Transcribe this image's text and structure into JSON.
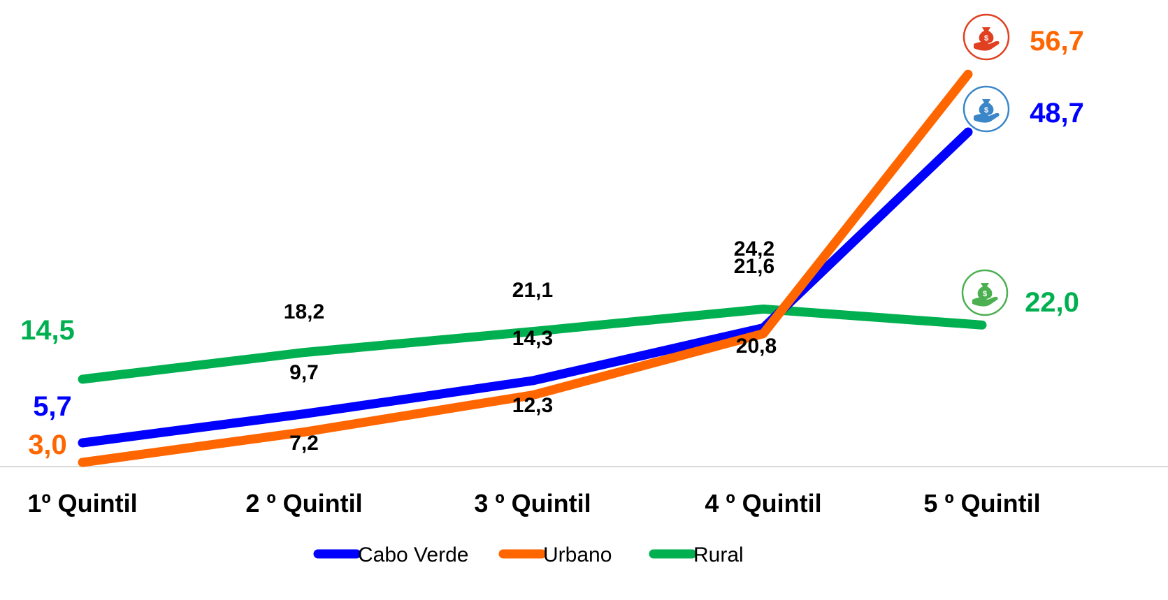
{
  "chart_data": {
    "type": "line",
    "categories": [
      "1º Quintil",
      "2 º Quintil",
      "3 º Quintil",
      "4 º Quintil",
      "5 º Quintil"
    ],
    "series": [
      {
        "name": "Cabo Verde",
        "color": "#0000ff",
        "values": [
          5.7,
          9.7,
          14.3,
          21.6,
          48.7
        ],
        "labels": [
          "5,7",
          "9,7",
          "14,3",
          "21,6",
          "48,7"
        ]
      },
      {
        "name": "Urbano",
        "color": "#ff6600",
        "values": [
          3.0,
          7.2,
          12.3,
          20.8,
          56.7
        ],
        "labels": [
          "3,0",
          "7,2",
          "12,3",
          "20,8",
          "56,7"
        ]
      },
      {
        "name": "Rural",
        "color": "#00b050",
        "values": [
          14.5,
          18.2,
          21.1,
          24.2,
          22.0
        ],
        "labels": [
          "14,5",
          "18,2",
          "21,1",
          "24,2",
          "22,0"
        ]
      }
    ],
    "end_markers": [
      {
        "series": "Urbano",
        "icon": "money-bag-hand-icon",
        "color": "#e04020"
      },
      {
        "series": "Cabo Verde",
        "icon": "money-bag-hand-icon",
        "color": "#3a86c8"
      },
      {
        "series": "Rural",
        "icon": "money-bag-hand-icon",
        "color": "#4caf50"
      }
    ],
    "legend_position": "bottom-center",
    "grid": false
  }
}
